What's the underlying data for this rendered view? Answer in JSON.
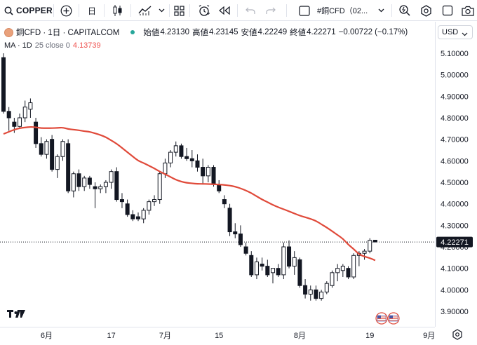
{
  "toolbar": {
    "symbol": "COPPER",
    "interval": "日",
    "compare_label": "#銅CFD（02...",
    "icons": [
      "search-icon",
      "add-symbol-icon",
      "interval",
      "bar-style-icon",
      "indicators-icon",
      "layout-icon",
      "alert-icon",
      "replay-icon",
      "undo-icon",
      "redo-icon",
      "rectangle-icon",
      "compare-icon",
      "chevron-down-icon",
      "quick-search-icon",
      "settings-icon",
      "camera-icon"
    ]
  },
  "legend": {
    "symbol_title": "銅CFD · 1日 · CAPITALCOM",
    "open_label": "始値",
    "open": "4.23130",
    "high_label": "高値",
    "high": "4.23145",
    "low_label": "安値",
    "low": "4.22249",
    "close_label": "終値",
    "close": "4.22271",
    "change": "−0.00722 (−0.17%)",
    "ma_name": "MA · 1D",
    "ma_params": "25 close 0",
    "ma_value": "4.13739"
  },
  "currency": "USD",
  "colors": {
    "candle": "#131722",
    "ma": "#e04a3a",
    "tag": "#131722"
  },
  "chart_data": {
    "type": "candlestick",
    "title": "銅CFD · 1日 · CAPITALCOM",
    "y_ticks": [
      "5.10000",
      "5.00000",
      "4.90000",
      "4.80000",
      "4.70000",
      "4.60000",
      "4.50000",
      "4.40000",
      "4.30000",
      "4.20000",
      "4.10000",
      "4.00000",
      "3.90000"
    ],
    "ylim": [
      3.87,
      5.16
    ],
    "x_ticks": [
      {
        "label": "6月",
        "index": 8
      },
      {
        "label": "17",
        "index": 20
      },
      {
        "label": "7月",
        "index": 30
      },
      {
        "label": "15",
        "index": 40
      },
      {
        "label": "8月",
        "index": 55
      },
      {
        "label": "19",
        "index": 68
      },
      {
        "label": "9月",
        "index": 79
      }
    ],
    "last_price": "4.22271",
    "candles": [
      [
        5.08,
        5.1,
        4.82,
        4.83
      ],
      [
        4.83,
        4.85,
        4.74,
        4.8
      ],
      [
        4.78,
        4.8,
        4.73,
        4.76
      ],
      [
        4.76,
        4.82,
        4.75,
        4.8
      ],
      [
        4.8,
        4.88,
        4.78,
        4.85
      ],
      [
        4.84,
        4.89,
        4.8,
        4.87
      ],
      [
        4.78,
        4.8,
        4.66,
        4.68
      ],
      [
        4.68,
        4.71,
        4.62,
        4.63
      ],
      [
        4.63,
        4.7,
        4.61,
        4.69
      ],
      [
        4.7,
        4.72,
        4.55,
        4.56
      ],
      [
        4.56,
        4.63,
        4.52,
        4.62
      ],
      [
        4.62,
        4.7,
        4.6,
        4.69
      ],
      [
        4.68,
        4.7,
        4.45,
        4.46
      ],
      [
        4.46,
        4.55,
        4.43,
        4.54
      ],
      [
        4.54,
        4.56,
        4.46,
        4.48
      ],
      [
        4.48,
        4.53,
        4.46,
        4.52
      ],
      [
        4.52,
        4.53,
        4.47,
        4.49
      ],
      [
        4.48,
        4.5,
        4.38,
        4.47
      ],
      [
        4.47,
        4.49,
        4.45,
        4.48
      ],
      [
        4.48,
        4.51,
        4.45,
        4.5
      ],
      [
        4.5,
        4.56,
        4.47,
        4.55
      ],
      [
        4.55,
        4.57,
        4.41,
        4.42
      ],
      [
        4.42,
        4.45,
        4.38,
        4.41
      ],
      [
        4.4,
        4.42,
        4.34,
        4.35
      ],
      [
        4.35,
        4.37,
        4.32,
        4.33
      ],
      [
        4.34,
        4.36,
        4.32,
        4.33
      ],
      [
        4.33,
        4.38,
        4.31,
        4.37
      ],
      [
        4.37,
        4.42,
        4.35,
        4.41
      ],
      [
        4.41,
        4.44,
        4.39,
        4.42
      ],
      [
        4.42,
        4.55,
        4.4,
        4.54
      ],
      [
        4.54,
        4.61,
        4.52,
        4.59
      ],
      [
        4.59,
        4.65,
        4.57,
        4.64
      ],
      [
        4.64,
        4.69,
        4.62,
        4.67
      ],
      [
        4.67,
        4.68,
        4.61,
        4.62
      ],
      [
        4.62,
        4.66,
        4.6,
        4.61
      ],
      [
        4.61,
        4.65,
        4.57,
        4.6
      ],
      [
        4.6,
        4.63,
        4.55,
        4.57
      ],
      [
        4.57,
        4.61,
        4.49,
        4.53
      ],
      [
        4.53,
        4.58,
        4.5,
        4.57
      ],
      [
        4.57,
        4.58,
        4.48,
        4.49
      ],
      [
        4.49,
        4.51,
        4.45,
        4.46
      ],
      [
        4.42,
        4.44,
        4.38,
        4.4
      ],
      [
        4.38,
        4.4,
        4.25,
        4.27
      ],
      [
        4.27,
        4.31,
        4.24,
        4.26
      ],
      [
        4.26,
        4.3,
        4.2,
        4.21
      ],
      [
        4.2,
        4.22,
        4.16,
        4.17
      ],
      [
        4.16,
        4.18,
        4.06,
        4.07
      ],
      [
        4.07,
        4.15,
        4.05,
        4.13
      ],
      [
        4.12,
        4.15,
        4.09,
        4.11
      ],
      [
        4.11,
        4.14,
        4.06,
        4.07
      ],
      [
        4.08,
        4.1,
        4.03,
        4.1
      ],
      [
        4.1,
        4.12,
        4.06,
        4.07
      ],
      [
        4.07,
        4.22,
        4.05,
        4.2
      ],
      [
        4.2,
        4.23,
        4.1,
        4.11
      ],
      [
        4.11,
        4.18,
        4.07,
        4.15
      ],
      [
        4.14,
        4.15,
        4.01,
        4.02
      ],
      [
        4.02,
        4.05,
        3.96,
        3.98
      ],
      [
        3.98,
        4.02,
        3.95,
        4.0
      ],
      [
        4.0,
        4.02,
        3.95,
        3.96
      ],
      [
        3.96,
        4.0,
        3.95,
        3.99
      ],
      [
        3.99,
        4.04,
        3.98,
        4.03
      ],
      [
        4.02,
        4.09,
        4.01,
        4.08
      ],
      [
        4.08,
        4.12,
        4.04,
        4.1
      ],
      [
        4.09,
        4.12,
        4.06,
        4.11
      ],
      [
        4.1,
        4.11,
        4.05,
        4.06
      ],
      [
        4.06,
        4.17,
        4.05,
        4.16
      ],
      [
        4.16,
        4.18,
        4.11,
        4.17
      ],
      [
        4.17,
        4.19,
        4.14,
        4.18
      ],
      [
        4.18,
        4.24,
        4.17,
        4.23
      ],
      [
        4.231,
        4.2315,
        4.2225,
        4.2227
      ]
    ],
    "ma": [
      4.725,
      4.735,
      4.745,
      4.752,
      4.755,
      4.758,
      4.756,
      4.752,
      4.752,
      4.752,
      4.753,
      4.755,
      4.748,
      4.745,
      4.742,
      4.738,
      4.735,
      4.728,
      4.72,
      4.71,
      4.695,
      4.68,
      4.66,
      4.64,
      4.62,
      4.6,
      4.59,
      4.577,
      4.565,
      4.55,
      4.538,
      4.525,
      4.512,
      4.503,
      4.498,
      4.495,
      4.493,
      4.493,
      4.492,
      4.491,
      4.49,
      4.488,
      4.485,
      4.48,
      4.472,
      4.462,
      4.45,
      4.435,
      4.42,
      4.408,
      4.395,
      4.384,
      4.375,
      4.365,
      4.355,
      4.345,
      4.338,
      4.33,
      4.321,
      4.305,
      4.29,
      4.273,
      4.255,
      4.238,
      4.21,
      4.19,
      4.165,
      4.155,
      4.148,
      4.137
    ]
  }
}
